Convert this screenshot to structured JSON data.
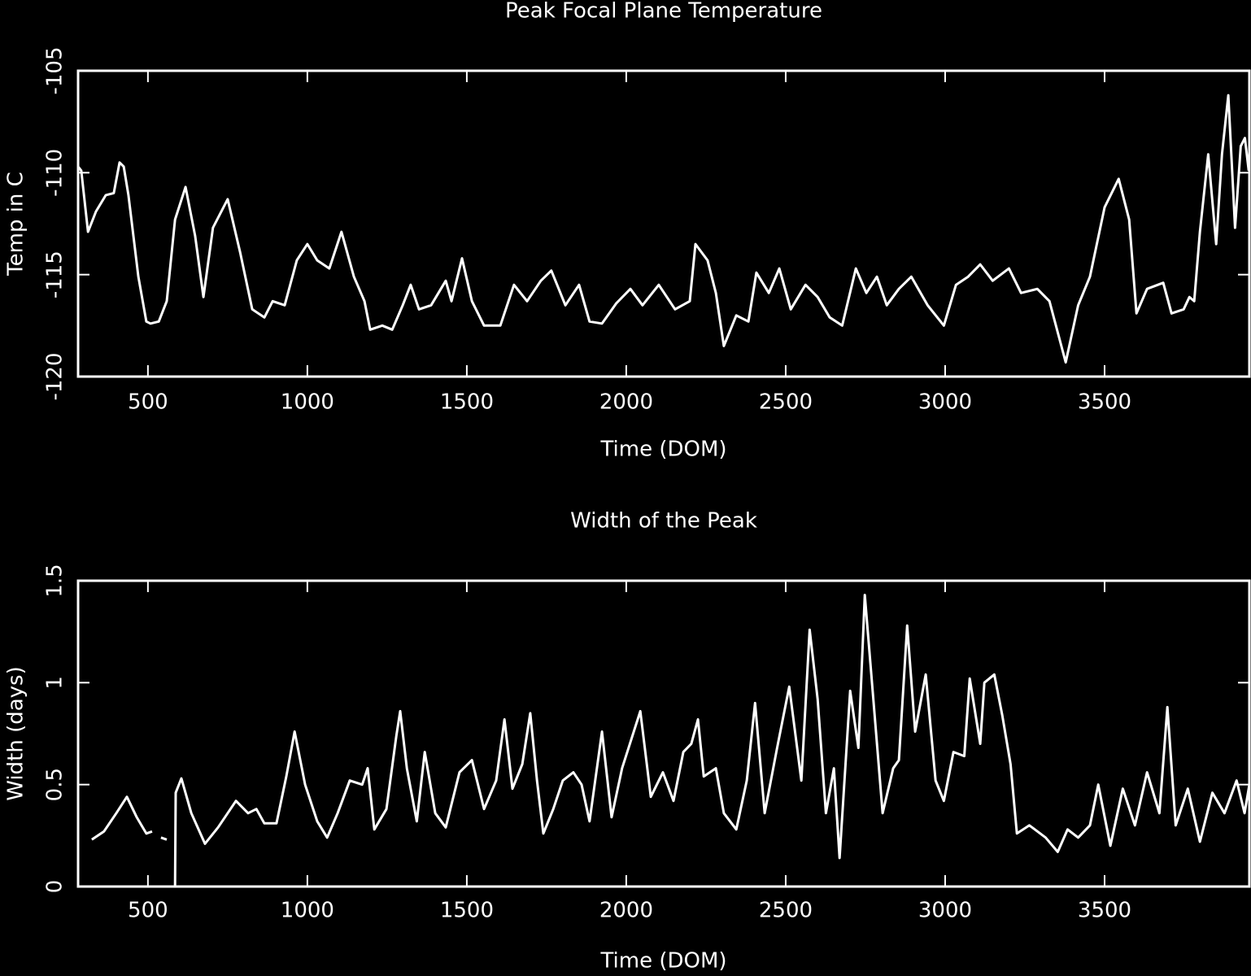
{
  "chart_data": [
    {
      "type": "line",
      "title": "Peak Focal Plane Temperature",
      "xlabel": "Time (DOM)",
      "ylabel": "Temp in C",
      "color": "#ffffff",
      "xlim": [
        281,
        3954
      ],
      "ylim": [
        -120,
        -105
      ],
      "xticks": [
        500,
        1000,
        1500,
        2000,
        2500,
        3000,
        3500
      ],
      "yticks": [
        -120,
        -115,
        -110,
        -105
      ],
      "x": [
        281,
        291,
        312,
        337,
        368,
        393,
        411,
        424,
        439,
        470,
        495,
        508,
        534,
        559,
        585,
        618,
        648,
        674,
        704,
        750,
        789,
        827,
        865,
        891,
        929,
        967,
        1000,
        1031,
        1069,
        1107,
        1146,
        1179,
        1197,
        1235,
        1266,
        1299,
        1324,
        1350,
        1388,
        1434,
        1452,
        1485,
        1516,
        1554,
        1605,
        1648,
        1689,
        1732,
        1765,
        1809,
        1852,
        1885,
        1924,
        1969,
        2013,
        2051,
        2102,
        2153,
        2199,
        2217,
        2255,
        2281,
        2306,
        2345,
        2383,
        2408,
        2447,
        2480,
        2516,
        2562,
        2600,
        2638,
        2677,
        2720,
        2753,
        2786,
        2817,
        2855,
        2894,
        2945,
        2996,
        3034,
        3072,
        3110,
        3149,
        3200,
        3238,
        3289,
        3327,
        3378,
        3417,
        3454,
        3500,
        3544,
        3577,
        3600,
        3633,
        3684,
        3710,
        3748,
        3766,
        3781,
        3799,
        3825,
        3850,
        3868,
        3888,
        3909,
        3927,
        3940,
        3952
      ],
      "values": [
        -109.7,
        -109.9,
        -112.9,
        -111.9,
        -111.1,
        -111.0,
        -109.5,
        -109.7,
        -111.1,
        -115.1,
        -117.3,
        -117.4,
        -117.3,
        -116.3,
        -112.3,
        -110.7,
        -113.1,
        -116.1,
        -112.7,
        -111.3,
        -113.9,
        -116.7,
        -117.1,
        -116.3,
        -116.5,
        -114.3,
        -113.5,
        -114.3,
        -114.7,
        -112.9,
        -115.1,
        -116.3,
        -117.7,
        -117.5,
        -117.7,
        -116.5,
        -115.5,
        -116.7,
        -116.5,
        -115.3,
        -116.3,
        -114.2,
        -116.3,
        -117.5,
        -117.5,
        -115.5,
        -116.3,
        -115.3,
        -114.8,
        -116.5,
        -115.5,
        -117.3,
        -117.4,
        -116.4,
        -115.7,
        -116.5,
        -115.5,
        -116.7,
        -116.3,
        -113.5,
        -114.3,
        -115.9,
        -118.5,
        -117.0,
        -117.3,
        -114.9,
        -115.9,
        -114.7,
        -116.7,
        -115.5,
        -116.1,
        -117.1,
        -117.5,
        -114.7,
        -115.9,
        -115.1,
        -116.5,
        -115.7,
        -115.1,
        -116.5,
        -117.5,
        -115.5,
        -115.1,
        -114.5,
        -115.3,
        -114.7,
        -115.9,
        -115.7,
        -116.3,
        -119.3,
        -116.5,
        -115.1,
        -111.7,
        -110.3,
        -112.3,
        -116.9,
        -115.7,
        -115.4,
        -116.9,
        -116.7,
        -116.1,
        -116.3,
        -112.9,
        -109.1,
        -113.5,
        -109.1,
        -106.2,
        -112.7,
        -108.7,
        -108.3,
        -109.9
      ]
    },
    {
      "type": "line",
      "title": "Width of the Peak",
      "xlabel": "Time (DOM)",
      "ylabel": "Width (days)",
      "color": "#ffffff",
      "xlim": [
        281,
        3954
      ],
      "ylim": [
        0,
        1.5
      ],
      "xticks": [
        500,
        1000,
        1500,
        2000,
        2500,
        3000,
        3500
      ],
      "yticks": [
        0,
        0.5,
        1,
        1.5
      ],
      "x": [
        324,
        362,
        401,
        434,
        465,
        495,
        513,
        527,
        541,
        559,
        572,
        585,
        587,
        605,
        636,
        679,
        720,
        776,
        814,
        840,
        865,
        903,
        934,
        960,
        993,
        1031,
        1062,
        1095,
        1133,
        1172,
        1189,
        1210,
        1248,
        1279,
        1291,
        1312,
        1343,
        1368,
        1401,
        1434,
        1477,
        1516,
        1554,
        1592,
        1618,
        1643,
        1674,
        1699,
        1720,
        1740,
        1771,
        1801,
        1834,
        1860,
        1885,
        1924,
        1954,
        1987,
        2044,
        2077,
        2115,
        2148,
        2179,
        2204,
        2225,
        2243,
        2281,
        2306,
        2345,
        2378,
        2404,
        2434,
        2473,
        2511,
        2549,
        2575,
        2600,
        2626,
        2651,
        2669,
        2702,
        2728,
        2748,
        2779,
        2804,
        2837,
        2855,
        2881,
        2906,
        2939,
        2970,
        2996,
        3026,
        3060,
        3077,
        3110,
        3123,
        3154,
        3179,
        3205,
        3225,
        3264,
        3315,
        3353,
        3384,
        3417,
        3454,
        3480,
        3518,
        3557,
        3595,
        3633,
        3672,
        3697,
        3723,
        3761,
        3799,
        3838,
        3876,
        3914,
        3939,
        3954
      ],
      "values": [
        0.23,
        0.27,
        0.36,
        0.44,
        0.34,
        0.26,
        0.27,
        null,
        0.24,
        0.23,
        null,
        0,
        0.46,
        0.53,
        0.36,
        0.21,
        0.29,
        0.42,
        0.36,
        0.38,
        0.31,
        0.31,
        0.54,
        0.76,
        0.5,
        0.32,
        0.24,
        0.36,
        0.52,
        0.5,
        0.58,
        0.28,
        0.38,
        0.74,
        0.86,
        0.58,
        0.32,
        0.66,
        0.36,
        0.29,
        0.56,
        0.62,
        0.38,
        0.52,
        0.82,
        0.48,
        0.6,
        0.85,
        0.52,
        0.26,
        0.38,
        0.52,
        0.56,
        0.5,
        0.32,
        0.76,
        0.34,
        0.58,
        0.86,
        0.44,
        0.56,
        0.42,
        0.66,
        0.7,
        0.82,
        0.54,
        0.58,
        0.36,
        0.28,
        0.52,
        0.9,
        0.36,
        0.68,
        0.98,
        0.52,
        1.26,
        0.92,
        0.36,
        0.58,
        0.14,
        0.96,
        0.68,
        1.43,
        0.84,
        0.36,
        0.58,
        0.62,
        1.28,
        0.76,
        1.04,
        0.52,
        0.42,
        0.66,
        0.64,
        1.02,
        0.7,
        1.0,
        1.04,
        0.84,
        0.6,
        0.26,
        0.3,
        0.24,
        0.17,
        0.28,
        0.24,
        0.3,
        0.5,
        0.2,
        0.48,
        0.3,
        0.56,
        0.36,
        0.88,
        0.3,
        0.48,
        0.22,
        0.46,
        0.36,
        0.52,
        0.36,
        0.5
      ]
    }
  ]
}
